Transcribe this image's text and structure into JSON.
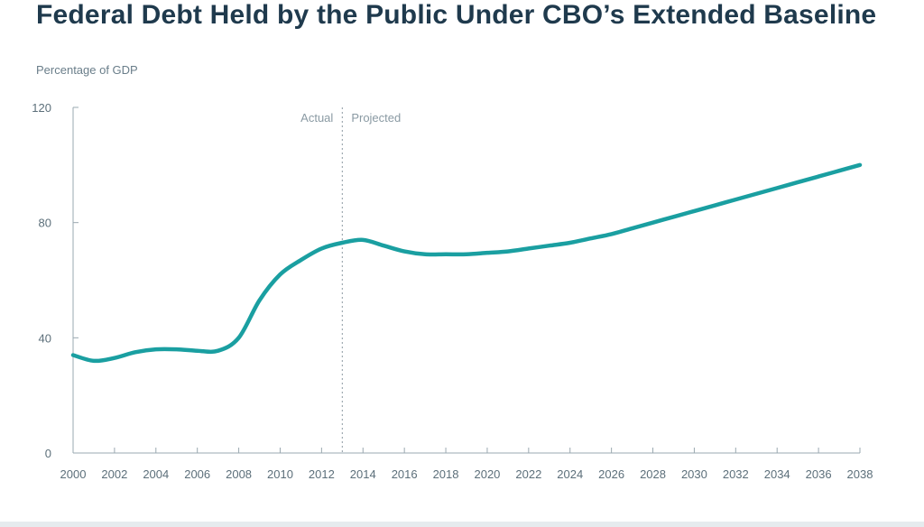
{
  "chart_data": {
    "type": "line",
    "title": "Federal Debt Held by the Public Under CBO’s Extended Baseline",
    "ylabel": "Percentage of GDP",
    "xlabel": "",
    "xlim": [
      2000,
      2038
    ],
    "ylim": [
      0,
      120
    ],
    "x_ticks": [
      2000,
      2002,
      2004,
      2006,
      2008,
      2010,
      2012,
      2014,
      2016,
      2018,
      2020,
      2022,
      2024,
      2026,
      2028,
      2030,
      2032,
      2034,
      2036,
      2038
    ],
    "y_ticks": [
      0,
      40,
      80,
      120
    ],
    "grid": false,
    "legend": "none",
    "line_color": "#1a9fa1",
    "divider": {
      "x": 2013,
      "left_label": "Actual",
      "right_label": "Projected"
    },
    "series": [
      {
        "x": [
          2000,
          2001,
          2002,
          2003,
          2004,
          2005,
          2006,
          2007,
          2008,
          2009,
          2010,
          2011,
          2012,
          2013,
          2014,
          2015,
          2016,
          2017,
          2018,
          2019,
          2020,
          2021,
          2022,
          2023,
          2024,
          2025,
          2026,
          2027,
          2028,
          2029,
          2030,
          2031,
          2032,
          2033,
          2034,
          2035,
          2036,
          2037,
          2038
        ],
        "y": [
          34,
          32,
          33,
          35,
          36,
          36,
          35.5,
          35.5,
          40,
          53,
          62,
          67,
          71,
          73,
          74,
          72,
          70,
          69,
          69,
          69,
          69.5,
          70,
          71,
          72,
          73,
          74.5,
          76,
          78,
          80,
          82,
          84,
          86,
          88,
          90,
          92,
          94,
          96,
          98,
          100
        ]
      }
    ]
  }
}
